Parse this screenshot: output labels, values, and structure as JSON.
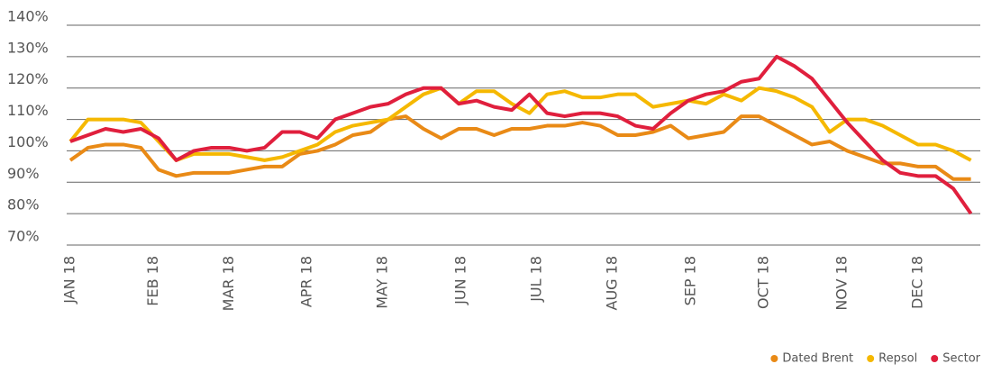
{
  "chart_data": {
    "type": "line",
    "x": [
      0,
      7,
      14,
      21,
      28,
      35,
      42,
      49,
      56,
      63,
      70,
      77,
      84,
      91,
      98,
      105,
      112,
      119,
      126,
      133,
      140,
      147,
      154,
      161,
      168,
      175,
      182,
      189,
      196,
      203,
      210,
      217,
      224,
      231,
      238,
      245,
      252,
      259,
      266,
      273,
      280,
      287,
      294,
      301,
      308,
      315,
      322,
      329,
      336,
      343,
      350,
      357
    ],
    "xlim": [
      0,
      360
    ],
    "xticks": [
      {
        "value": 0,
        "label": "JAN 18"
      },
      {
        "value": 33,
        "label": "FEB 18"
      },
      {
        "value": 63,
        "label": "MAR 18"
      },
      {
        "value": 94,
        "label": "APR 18"
      },
      {
        "value": 124,
        "label": "MAY 18"
      },
      {
        "value": 155,
        "label": "JUN 18"
      },
      {
        "value": 185,
        "label": "JUL 18"
      },
      {
        "value": 215,
        "label": "AUG 18"
      },
      {
        "value": 246,
        "label": "SEP 18"
      },
      {
        "value": 275,
        "label": "OCT 18"
      },
      {
        "value": 306,
        "label": "NOV 18"
      },
      {
        "value": 336,
        "label": "DEC 18"
      }
    ],
    "ylim": [
      70,
      140
    ],
    "yticks": [
      {
        "value": 70,
        "label": "70%"
      },
      {
        "value": 80,
        "label": "80%"
      },
      {
        "value": 90,
        "label": "90%"
      },
      {
        "value": 100,
        "label": "100%"
      },
      {
        "value": 110,
        "label": "110%"
      },
      {
        "value": 120,
        "label": "120%"
      },
      {
        "value": 130,
        "label": "130%"
      },
      {
        "value": 140,
        "label": "140%"
      }
    ],
    "grid": true,
    "legend": "lower right",
    "series": [
      {
        "name": "Dated Brent",
        "color": "#e98a16",
        "values": [
          97,
          101,
          102,
          102,
          101,
          94,
          92,
          93,
          93,
          93,
          94,
          95,
          95,
          99,
          100,
          102,
          105,
          106,
          110,
          111,
          107,
          104,
          107,
          107,
          105,
          107,
          107,
          108,
          108,
          109,
          108,
          105,
          105,
          106,
          108,
          104,
          105,
          106,
          111,
          111,
          108,
          105,
          102,
          103,
          100,
          98,
          96,
          96,
          95,
          95,
          91,
          91
        ]
      },
      {
        "name": "Repsol",
        "color": "#f5b800",
        "values": [
          103,
          110,
          110,
          110,
          109,
          103,
          97,
          99,
          99,
          99,
          98,
          97,
          98,
          100,
          102,
          106,
          108,
          109,
          110,
          114,
          118,
          120,
          115,
          119,
          119,
          115,
          112,
          118,
          119,
          117,
          117,
          118,
          118,
          114,
          115,
          116,
          115,
          118,
          116,
          120,
          119,
          117,
          114,
          106,
          110,
          110,
          108,
          105,
          102,
          102,
          100,
          97
        ]
      },
      {
        "name": "Sector",
        "color": "#e01f3d",
        "values": [
          103,
          105,
          107,
          106,
          107,
          104,
          97,
          100,
          101,
          101,
          100,
          101,
          106,
          106,
          104,
          110,
          112,
          114,
          115,
          118,
          120,
          120,
          115,
          116,
          114,
          113,
          118,
          112,
          111,
          112,
          112,
          111,
          108,
          107,
          112,
          116,
          118,
          119,
          122,
          123,
          130,
          127,
          123,
          116,
          109,
          103,
          97,
          93,
          92,
          92,
          88,
          80
        ]
      }
    ]
  }
}
